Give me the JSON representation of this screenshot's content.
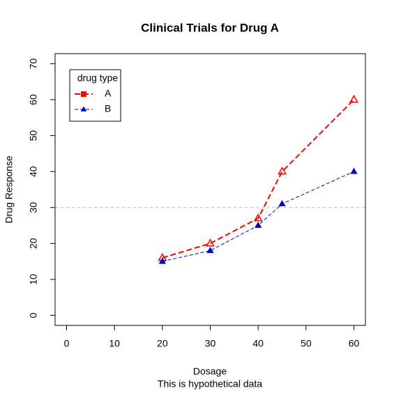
{
  "chart_data": {
    "type": "line",
    "title": "Clinical Trials for Drug A",
    "x_label": "Dosage",
    "subtitle": "This is hypothetical data",
    "y_label": "Drug Response",
    "x": [
      20,
      30,
      40,
      45,
      60
    ],
    "series": [
      {
        "name": "A",
        "color": "#ff0000",
        "values": [
          16,
          20,
          27,
          40,
          60
        ]
      },
      {
        "name": "B",
        "color": "#0000cd",
        "values": [
          15,
          18,
          25,
          31,
          40
        ]
      }
    ],
    "legend_title": "drug type",
    "legend": "top-left",
    "reference_line": 30,
    "xlim": [
      -2.4,
      62.4
    ],
    "xticks": [
      0,
      10,
      20,
      30,
      40,
      50,
      60
    ],
    "ylim": [
      -2.8,
      72.8
    ],
    "yticks": [
      0,
      10,
      20,
      30,
      40,
      50,
      60,
      70
    ]
  }
}
